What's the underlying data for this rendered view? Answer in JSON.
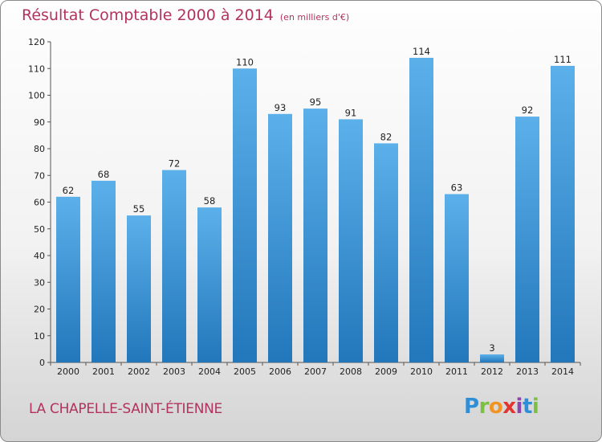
{
  "header": {
    "title": "Résultat Comptable 2000 à 2014",
    "subtitle": "(en milliers d'€)"
  },
  "footer": {
    "commune": "LA CHAPELLE-SAINT-ÉTIENNE",
    "logo_letters": [
      "P",
      "r",
      "o",
      "x",
      "i",
      "t",
      "i"
    ]
  },
  "colors": {
    "title": "#b1335f",
    "bar_light": "#5cb0ea",
    "bar_dark": "#2277bb"
  },
  "chart_data": {
    "type": "bar",
    "title": "Résultat Comptable 2000 à 2014",
    "subtitle": "(en milliers d'€)",
    "xlabel": "",
    "ylabel": "",
    "categories": [
      "2000",
      "2001",
      "2002",
      "2003",
      "2004",
      "2005",
      "2006",
      "2007",
      "2008",
      "2009",
      "2010",
      "2011",
      "2012",
      "2013",
      "2014"
    ],
    "values": [
      62,
      68,
      55,
      72,
      58,
      110,
      93,
      95,
      91,
      82,
      114,
      63,
      3,
      92,
      111
    ],
    "ylim": [
      0,
      120
    ],
    "yticks": [
      0,
      10,
      20,
      30,
      40,
      50,
      60,
      70,
      80,
      90,
      100,
      110,
      120
    ],
    "grid": false,
    "data_labels": true
  }
}
